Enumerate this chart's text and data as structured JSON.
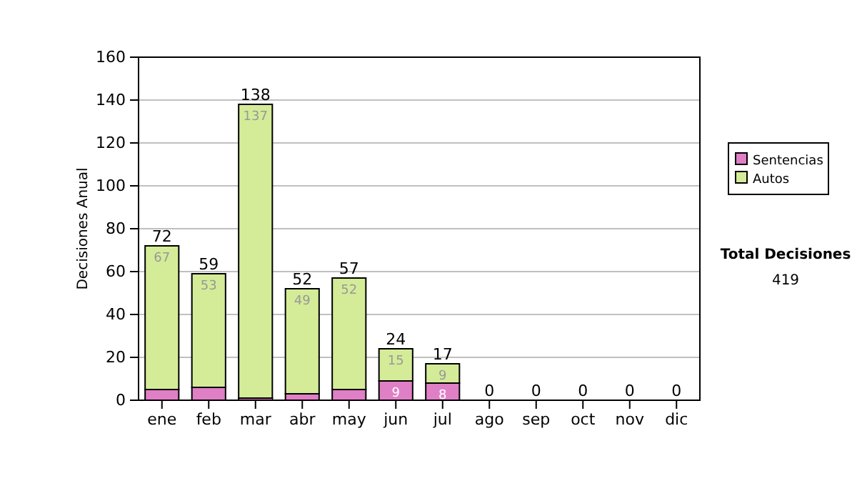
{
  "chart_data": {
    "type": "bar",
    "stacked": true,
    "ylabel": "Decisiones Anual",
    "categories": [
      "ene",
      "feb",
      "mar",
      "abr",
      "may",
      "jun",
      "jul",
      "ago",
      "sep",
      "oct",
      "nov",
      "dic"
    ],
    "series": [
      {
        "name": "Sentencias",
        "color": "#df7fc6",
        "values": [
          5,
          6,
          1,
          3,
          5,
          9,
          8,
          0,
          0,
          0,
          0,
          0
        ],
        "value_labels": [
          null,
          null,
          null,
          null,
          null,
          "9",
          "8",
          null,
          null,
          null,
          null,
          null
        ]
      },
      {
        "name": "Autos",
        "color": "#d4ec98",
        "values": [
          67,
          53,
          137,
          49,
          52,
          15,
          9,
          0,
          0,
          0,
          0,
          0
        ],
        "value_labels": [
          "67",
          "53",
          "137",
          "49",
          "52",
          "15",
          "9",
          null,
          null,
          null,
          null,
          null
        ]
      }
    ],
    "totals": [
      "72",
      "59",
      "138",
      "52",
      "57",
      "24",
      "17",
      "0",
      "0",
      "0",
      "0",
      "0"
    ],
    "ylim": [
      0,
      160
    ],
    "yticks": [
      0,
      20,
      40,
      60,
      80,
      100,
      120,
      140,
      160
    ],
    "grid": "y",
    "legend": "right",
    "annotations": [
      "Total Decisiones",
      "419"
    ]
  }
}
